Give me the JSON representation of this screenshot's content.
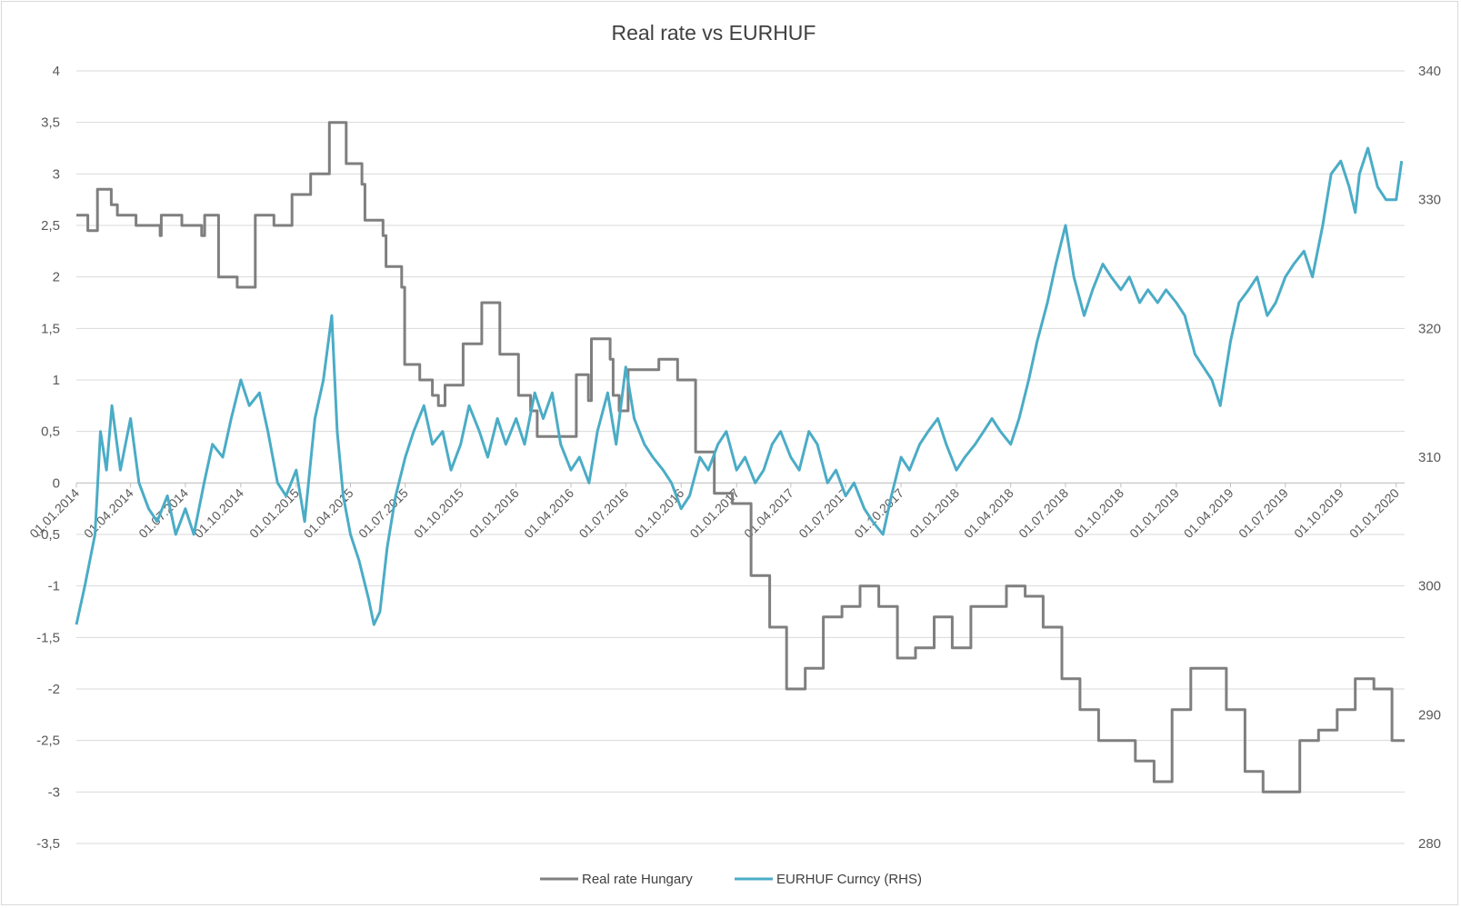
{
  "chart_data": {
    "type": "line",
    "title": "Real rate vs EURHUF",
    "grid": true,
    "legend_position": "bottom",
    "x_ticks": [
      "01.01.2014",
      "01.04.2014",
      "01.07.2014",
      "01.10.2014",
      "01.01.2015",
      "01.04.2015",
      "01.07.2015",
      "01.10.2015",
      "01.01.2016",
      "01.04.2016",
      "01.07.2016",
      "01.10.2016",
      "01.01.2017",
      "01.04.2017",
      "01.07.2017",
      "01.10.2017",
      "01.01.2018",
      "01.04.2018",
      "01.07.2018",
      "01.10.2018",
      "01.01.2019",
      "01.04.2019",
      "01.07.2019",
      "01.10.2019",
      "01.01.2020"
    ],
    "x_range": [
      "2014-01-01",
      "2020-01-15"
    ],
    "y_left": {
      "ticks": [
        "4",
        "3,5",
        "3",
        "2,5",
        "2",
        "1,5",
        "1",
        "0,5",
        "0",
        "-0,5",
        "-1",
        "-1,5",
        "-2",
        "-2,5",
        "-3",
        "-3,5"
      ],
      "range": [
        -3.5,
        4
      ]
    },
    "y_right": {
      "ticks": [
        "340",
        "330",
        "320",
        "310",
        "300",
        "290",
        "280"
      ],
      "range": [
        280,
        340
      ]
    },
    "series": [
      {
        "name": "Real rate Hungary",
        "axis": "left",
        "color": "#7f7f7f",
        "step": true,
        "points": [
          [
            "2014-01-01",
            2.6
          ],
          [
            "2014-01-20",
            2.45
          ],
          [
            "2014-02-05",
            2.85
          ],
          [
            "2014-02-28",
            2.7
          ],
          [
            "2014-03-10",
            2.6
          ],
          [
            "2014-04-10",
            2.5
          ],
          [
            "2014-05-20",
            2.4
          ],
          [
            "2014-05-22",
            2.6
          ],
          [
            "2014-06-25",
            2.5
          ],
          [
            "2014-07-28",
            2.4
          ],
          [
            "2014-08-02",
            2.6
          ],
          [
            "2014-08-25",
            2.0
          ],
          [
            "2014-09-25",
            1.9
          ],
          [
            "2014-10-25",
            2.6
          ],
          [
            "2014-11-25",
            2.5
          ],
          [
            "2014-12-25",
            2.8
          ],
          [
            "2015-01-25",
            3.0
          ],
          [
            "2015-02-25",
            3.5
          ],
          [
            "2015-03-25",
            3.1
          ],
          [
            "2015-04-20",
            2.9
          ],
          [
            "2015-04-25",
            2.55
          ],
          [
            "2015-05-25",
            2.4
          ],
          [
            "2015-05-30",
            2.1
          ],
          [
            "2015-06-25",
            1.9
          ],
          [
            "2015-06-30",
            1.15
          ],
          [
            "2015-07-25",
            1.0
          ],
          [
            "2015-08-15",
            0.85
          ],
          [
            "2015-08-25",
            0.75
          ],
          [
            "2015-09-05",
            0.95
          ],
          [
            "2015-10-05",
            1.35
          ],
          [
            "2015-11-05",
            1.75
          ],
          [
            "2015-12-05",
            1.25
          ],
          [
            "2016-01-05",
            0.85
          ],
          [
            "2016-01-25",
            0.7
          ],
          [
            "2016-02-05",
            0.45
          ],
          [
            "2016-03-25",
            0.45
          ],
          [
            "2016-04-10",
            1.05
          ],
          [
            "2016-04-30",
            0.8
          ],
          [
            "2016-05-05",
            1.4
          ],
          [
            "2016-06-05",
            1.2
          ],
          [
            "2016-06-10",
            0.85
          ],
          [
            "2016-06-20",
            0.7
          ],
          [
            "2016-07-05",
            1.1
          ],
          [
            "2016-08-05",
            1.1
          ],
          [
            "2016-08-25",
            1.2
          ],
          [
            "2016-09-25",
            1.0
          ],
          [
            "2016-10-25",
            0.3
          ],
          [
            "2016-11-25",
            -0.1
          ],
          [
            "2016-12-25",
            -0.2
          ],
          [
            "2017-01-25",
            -0.9
          ],
          [
            "2017-02-25",
            -1.4
          ],
          [
            "2017-03-25",
            -2.0
          ],
          [
            "2017-04-25",
            -1.8
          ],
          [
            "2017-05-25",
            -1.3
          ],
          [
            "2017-06-25",
            -1.2
          ],
          [
            "2017-07-25",
            -1.0
          ],
          [
            "2017-08-25",
            -1.2
          ],
          [
            "2017-09-25",
            -1.7
          ],
          [
            "2017-10-25",
            -1.6
          ],
          [
            "2017-11-25",
            -1.3
          ],
          [
            "2017-12-25",
            -1.6
          ],
          [
            "2018-01-25",
            -1.2
          ],
          [
            "2018-02-25",
            -1.2
          ],
          [
            "2018-03-25",
            -1.0
          ],
          [
            "2018-04-25",
            -1.1
          ],
          [
            "2018-05-25",
            -1.4
          ],
          [
            "2018-06-25",
            -1.9
          ],
          [
            "2018-07-25",
            -2.2
          ],
          [
            "2018-08-25",
            -2.5
          ],
          [
            "2018-09-25",
            -2.5
          ],
          [
            "2018-10-25",
            -2.7
          ],
          [
            "2018-11-25",
            -2.9
          ],
          [
            "2018-12-25",
            -2.2
          ],
          [
            "2019-01-25",
            -1.8
          ],
          [
            "2019-02-25",
            -1.8
          ],
          [
            "2019-03-25",
            -2.2
          ],
          [
            "2019-04-25",
            -2.8
          ],
          [
            "2019-05-25",
            -3.0
          ],
          [
            "2019-06-25",
            -3.0
          ],
          [
            "2019-07-25",
            -2.5
          ],
          [
            "2019-08-25",
            -2.4
          ],
          [
            "2019-09-25",
            -2.2
          ],
          [
            "2019-10-25",
            -1.9
          ],
          [
            "2019-11-25",
            -2.0
          ],
          [
            "2019-12-25",
            -2.5
          ],
          [
            "2020-01-15",
            -2.5
          ]
        ]
      },
      {
        "name": "EURHUF Curncy (RHS)",
        "axis": "right",
        "color": "#4bacc6",
        "step": false,
        "points": [
          [
            "2014-01-01",
            297
          ],
          [
            "2014-01-15",
            300
          ],
          [
            "2014-02-01",
            304
          ],
          [
            "2014-02-10",
            312
          ],
          [
            "2014-02-20",
            309
          ],
          [
            "2014-03-01",
            314
          ],
          [
            "2014-03-15",
            309
          ],
          [
            "2014-04-01",
            313
          ],
          [
            "2014-04-15",
            308
          ],
          [
            "2014-05-01",
            306
          ],
          [
            "2014-05-15",
            305
          ],
          [
            "2014-06-01",
            307
          ],
          [
            "2014-06-15",
            304
          ],
          [
            "2014-07-01",
            306
          ],
          [
            "2014-07-15",
            304
          ],
          [
            "2014-08-01",
            308
          ],
          [
            "2014-08-15",
            311
          ],
          [
            "2014-09-01",
            310
          ],
          [
            "2014-09-15",
            313
          ],
          [
            "2014-10-01",
            316
          ],
          [
            "2014-10-15",
            314
          ],
          [
            "2014-11-01",
            315
          ],
          [
            "2014-11-15",
            312
          ],
          [
            "2014-12-01",
            308
          ],
          [
            "2014-12-15",
            307
          ],
          [
            "2015-01-01",
            309
          ],
          [
            "2015-01-15",
            305
          ],
          [
            "2015-02-01",
            313
          ],
          [
            "2015-02-15",
            316
          ],
          [
            "2015-03-01",
            321
          ],
          [
            "2015-03-10",
            312
          ],
          [
            "2015-03-20",
            307
          ],
          [
            "2015-04-01",
            304
          ],
          [
            "2015-04-15",
            302
          ],
          [
            "2015-05-01",
            299
          ],
          [
            "2015-05-10",
            297
          ],
          [
            "2015-05-20",
            298
          ],
          [
            "2015-06-01",
            303
          ],
          [
            "2015-06-15",
            307
          ],
          [
            "2015-07-01",
            310
          ],
          [
            "2015-07-15",
            312
          ],
          [
            "2015-08-01",
            314
          ],
          [
            "2015-08-15",
            311
          ],
          [
            "2015-09-01",
            312
          ],
          [
            "2015-09-15",
            309
          ],
          [
            "2015-10-01",
            311
          ],
          [
            "2015-10-15",
            314
          ],
          [
            "2015-11-01",
            312
          ],
          [
            "2015-11-15",
            310
          ],
          [
            "2015-12-01",
            313
          ],
          [
            "2015-12-15",
            311
          ],
          [
            "2016-01-01",
            313
          ],
          [
            "2016-01-15",
            311
          ],
          [
            "2016-02-01",
            315
          ],
          [
            "2016-02-15",
            313
          ],
          [
            "2016-03-01",
            315
          ],
          [
            "2016-03-15",
            311
          ],
          [
            "2016-04-01",
            309
          ],
          [
            "2016-04-15",
            310
          ],
          [
            "2016-05-01",
            308
          ],
          [
            "2016-05-15",
            312
          ],
          [
            "2016-06-01",
            315
          ],
          [
            "2016-06-15",
            311
          ],
          [
            "2016-07-01",
            317
          ],
          [
            "2016-07-15",
            313
          ],
          [
            "2016-08-01",
            311
          ],
          [
            "2016-08-15",
            310
          ],
          [
            "2016-09-01",
            309
          ],
          [
            "2016-09-15",
            308
          ],
          [
            "2016-10-01",
            306
          ],
          [
            "2016-10-15",
            307
          ],
          [
            "2016-11-01",
            310
          ],
          [
            "2016-11-15",
            309
          ],
          [
            "2016-12-01",
            311
          ],
          [
            "2016-12-15",
            312
          ],
          [
            "2017-01-01",
            309
          ],
          [
            "2017-01-15",
            310
          ],
          [
            "2017-02-01",
            308
          ],
          [
            "2017-02-15",
            309
          ],
          [
            "2017-03-01",
            311
          ],
          [
            "2017-03-15",
            312
          ],
          [
            "2017-04-01",
            310
          ],
          [
            "2017-04-15",
            309
          ],
          [
            "2017-05-01",
            312
          ],
          [
            "2017-05-15",
            311
          ],
          [
            "2017-06-01",
            308
          ],
          [
            "2017-06-15",
            309
          ],
          [
            "2017-07-01",
            307
          ],
          [
            "2017-07-15",
            308
          ],
          [
            "2017-08-01",
            306
          ],
          [
            "2017-08-15",
            305
          ],
          [
            "2017-09-01",
            304
          ],
          [
            "2017-09-15",
            307
          ],
          [
            "2017-10-01",
            310
          ],
          [
            "2017-10-15",
            309
          ],
          [
            "2017-11-01",
            311
          ],
          [
            "2017-11-15",
            312
          ],
          [
            "2017-12-01",
            313
          ],
          [
            "2017-12-15",
            311
          ],
          [
            "2018-01-01",
            309
          ],
          [
            "2018-01-15",
            310
          ],
          [
            "2018-02-01",
            311
          ],
          [
            "2018-02-15",
            312
          ],
          [
            "2018-03-01",
            313
          ],
          [
            "2018-03-15",
            312
          ],
          [
            "2018-04-01",
            311
          ],
          [
            "2018-04-15",
            313
          ],
          [
            "2018-05-01",
            316
          ],
          [
            "2018-05-15",
            319
          ],
          [
            "2018-06-01",
            322
          ],
          [
            "2018-06-15",
            325
          ],
          [
            "2018-07-01",
            328
          ],
          [
            "2018-07-15",
            324
          ],
          [
            "2018-08-01",
            321
          ],
          [
            "2018-08-15",
            323
          ],
          [
            "2018-09-01",
            325
          ],
          [
            "2018-09-15",
            324
          ],
          [
            "2018-10-01",
            323
          ],
          [
            "2018-10-15",
            324
          ],
          [
            "2018-11-01",
            322
          ],
          [
            "2018-11-15",
            323
          ],
          [
            "2018-12-01",
            322
          ],
          [
            "2018-12-15",
            323
          ],
          [
            "2019-01-01",
            322
          ],
          [
            "2019-01-15",
            321
          ],
          [
            "2019-02-01",
            318
          ],
          [
            "2019-02-15",
            317
          ],
          [
            "2019-03-01",
            316
          ],
          [
            "2019-03-15",
            314
          ],
          [
            "2019-04-01",
            319
          ],
          [
            "2019-04-15",
            322
          ],
          [
            "2019-05-01",
            323
          ],
          [
            "2019-05-15",
            324
          ],
          [
            "2019-06-01",
            321
          ],
          [
            "2019-06-15",
            322
          ],
          [
            "2019-07-01",
            324
          ],
          [
            "2019-07-15",
            325
          ],
          [
            "2019-08-01",
            326
          ],
          [
            "2019-08-15",
            324
          ],
          [
            "2019-09-01",
            328
          ],
          [
            "2019-09-15",
            332
          ],
          [
            "2019-10-01",
            333
          ],
          [
            "2019-10-15",
            331
          ],
          [
            "2019-10-25",
            329
          ],
          [
            "2019-11-01",
            332
          ],
          [
            "2019-11-15",
            334
          ],
          [
            "2019-12-01",
            331
          ],
          [
            "2019-12-15",
            330
          ],
          [
            "2020-01-01",
            330
          ],
          [
            "2020-01-10",
            333
          ]
        ]
      }
    ]
  }
}
